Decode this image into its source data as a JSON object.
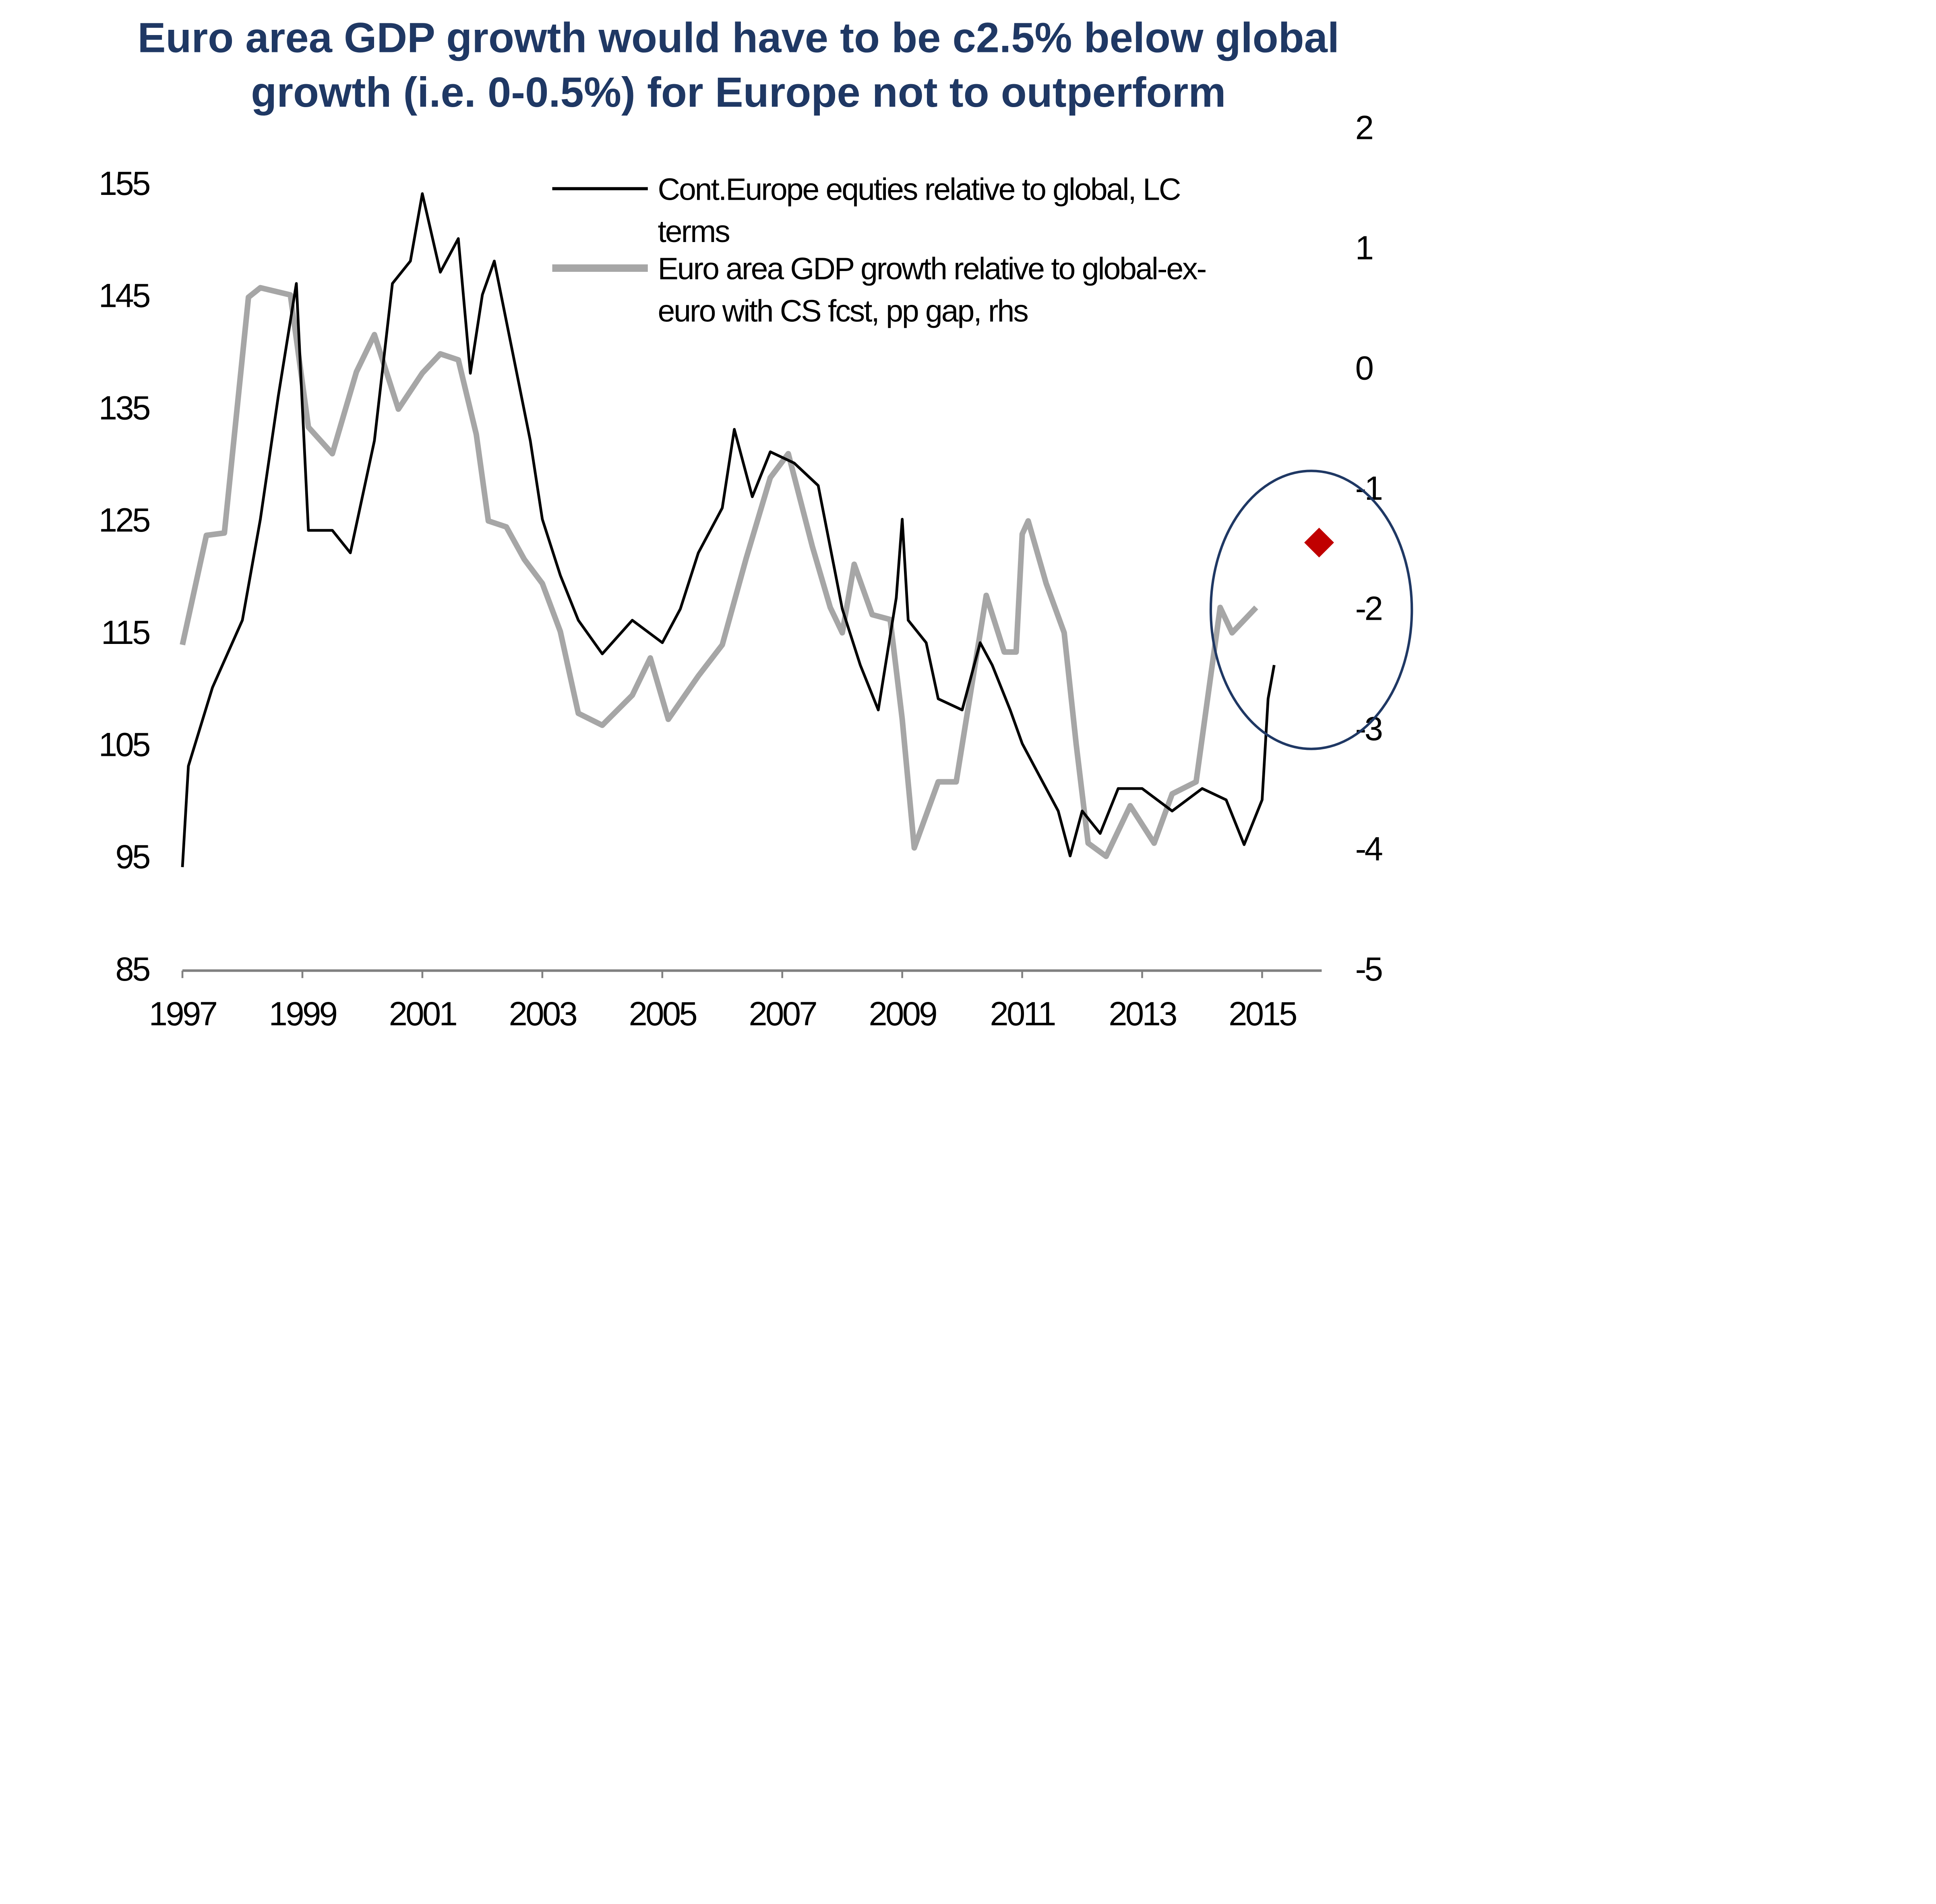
{
  "chart_data": {
    "type": "line",
    "title": [
      "Euro area GDP growth would have to be c2.5% below global",
      "growth (i.e. 0-0.5%) for Europe not to outperform"
    ],
    "xlabel": "",
    "ylabel_left": "",
    "ylabel_right": "",
    "xlim": [
      1997,
      2016
    ],
    "ylim_left": [
      85,
      155
    ],
    "ylim_right": [
      -5,
      2
    ],
    "x_ticks": [
      "1997",
      "1999",
      "2001",
      "2003",
      "2005",
      "2007",
      "2009",
      "2011",
      "2013",
      "2015"
    ],
    "y_ticks_left": [
      "155",
      "145",
      "135",
      "125",
      "115",
      "105",
      "95",
      "85"
    ],
    "y_ticks_right": [
      "2",
      "1",
      "0",
      "-1",
      "-2",
      "-3",
      "-4",
      "-5"
    ],
    "grid": false,
    "legend_position": "top-center",
    "series": [
      {
        "name": "Cont.Europe equties relative to global, LC terms",
        "legend_lines": [
          "Cont.Europe equties relative to global, LC",
          "terms"
        ],
        "axis": "left",
        "color": "#000000",
        "x": [
          1997.0,
          1997.1,
          1997.5,
          1998.0,
          1998.3,
          1998.6,
          1998.9,
          1999.1,
          1999.5,
          1999.8,
          2000.2,
          2000.5,
          2000.8,
          2001.0,
          2001.3,
          2001.6,
          2001.8,
          2002.0,
          2002.2,
          2002.5,
          2002.8,
          2003.0,
          2003.3,
          2003.6,
          2004.0,
          2004.5,
          2005.0,
          2005.3,
          2005.6,
          2006.0,
          2006.2,
          2006.5,
          2006.8,
          2007.2,
          2007.6,
          2008.0,
          2008.3,
          2008.6,
          2008.9,
          2009.0,
          2009.1,
          2009.4,
          2009.6,
          2010.0,
          2010.3,
          2010.5,
          2010.8,
          2011.0,
          2011.3,
          2011.6,
          2011.8,
          2012.0,
          2012.3,
          2012.6,
          2013.0,
          2013.5,
          2014.0,
          2014.4,
          2014.7,
          2015.0,
          2015.1,
          2015.2
        ],
        "values": [
          94,
          103,
          110,
          116,
          125,
          136,
          146,
          124,
          124,
          122,
          132,
          146,
          148,
          154,
          147,
          150,
          138,
          145,
          148,
          140,
          132,
          125,
          120,
          116,
          113,
          116,
          114,
          117,
          122,
          126,
          133,
          127,
          131,
          130,
          128,
          117,
          112,
          108,
          118,
          125,
          116,
          114,
          109,
          108,
          114,
          112,
          108,
          105,
          102,
          99,
          95,
          99,
          97,
          101,
          101,
          99,
          101,
          100,
          96,
          100,
          109,
          112
        ]
      },
      {
        "name": "Euro area GDP growth relative to global-ex-euro with CS fcst, pp gap, rhs",
        "legend_lines": [
          "Euro area GDP growth relative to global-ex-",
          "euro with CS fcst, pp gap, rhs"
        ],
        "axis": "right",
        "color": "#a6a6a6",
        "x": [
          1997.0,
          1997.4,
          1997.7,
          1998.1,
          1998.3,
          1998.8,
          1999.1,
          1999.5,
          1999.9,
          2000.2,
          2000.6,
          2001.0,
          2001.3,
          2001.6,
          2001.9,
          2002.1,
          2002.4,
          2002.7,
          2003.0,
          2003.3,
          2003.6,
          2004.0,
          2004.5,
          2004.8,
          2005.1,
          2005.6,
          2006.0,
          2006.4,
          2006.8,
          2007.1,
          2007.5,
          2007.8,
          2008.0,
          2008.2,
          2008.5,
          2008.8,
          2009.0,
          2009.2,
          2009.6,
          2009.9,
          2010.1,
          2010.4,
          2010.7,
          2010.9,
          2011.0,
          2011.1,
          2011.4,
          2011.7,
          2011.9,
          2012.1,
          2012.4,
          2012.8,
          2013.2,
          2013.5,
          2013.9,
          2014.3,
          2014.5,
          2014.9
        ],
        "values": [
          -2.31,
          -1.4,
          -1.38,
          0.58,
          0.66,
          0.6,
          -0.5,
          -0.72,
          -0.04,
          0.27,
          -0.35,
          -0.05,
          0.11,
          0.06,
          -0.56,
          -1.28,
          -1.33,
          -1.6,
          -1.8,
          -2.2,
          -2.88,
          -2.98,
          -2.73,
          -2.42,
          -2.93,
          -2.57,
          -2.31,
          -1.59,
          -0.92,
          -0.72,
          -1.49,
          -2.0,
          -2.21,
          -1.64,
          -2.06,
          -2.1,
          -2.93,
          -4.0,
          -3.45,
          -3.45,
          -2.83,
          -1.9,
          -2.37,
          -2.37,
          -1.39,
          -1.28,
          -1.8,
          -2.21,
          -3.14,
          -3.96,
          -4.07,
          -3.65,
          -3.96,
          -3.55,
          -3.45,
          -2.0,
          -2.21,
          -2.0
        ]
      }
    ],
    "annotations": {
      "forecast_point": {
        "x": 2015.95,
        "value": -1.46,
        "axis": "right",
        "color": "#c00000",
        "marker": "diamond"
      },
      "highlight_circle": {
        "x": 2015.82,
        "value": -2.02,
        "axis": "right",
        "color": "#1f3864"
      }
    }
  }
}
